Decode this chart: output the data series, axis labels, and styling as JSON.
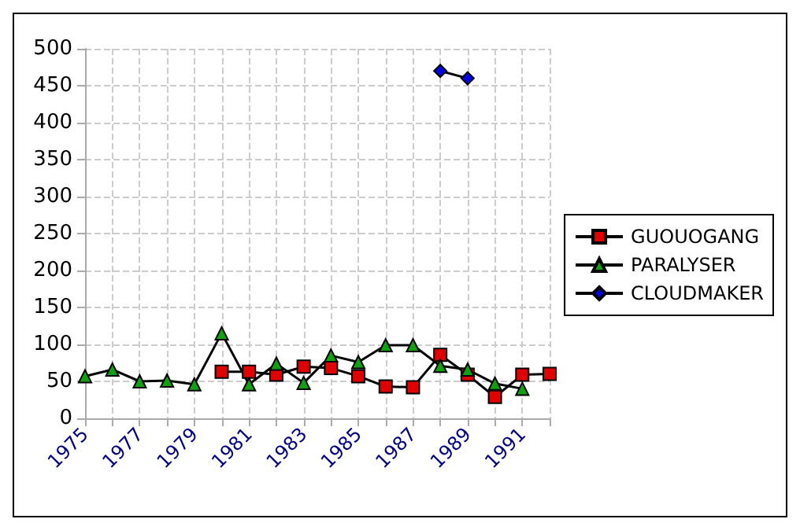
{
  "chart_data": {
    "type": "line",
    "categories": [
      "1975",
      null,
      "1977",
      null,
      "1979",
      null,
      "1981",
      null,
      "1983",
      null,
      "1985",
      null,
      "1987",
      null,
      "1989",
      null,
      "1991",
      null
    ],
    "series": [
      {
        "name": "GUOUOGANG",
        "color": "#e00000",
        "marker": "square",
        "values": [
          null,
          null,
          null,
          null,
          null,
          63,
          63,
          59,
          70,
          68,
          57,
          43,
          42,
          86,
          59,
          29,
          59,
          60
        ]
      },
      {
        "name": "PARALYSER",
        "color": "#10a010",
        "marker": "triangle",
        "values": [
          57,
          66,
          50,
          51,
          46,
          115,
          46,
          74,
          48,
          85,
          76,
          99,
          99,
          71,
          66,
          47,
          40,
          null
        ]
      },
      {
        "name": "CLOUDMAKER",
        "color": "#0000e0",
        "marker": "diamond",
        "values": [
          null,
          null,
          null,
          null,
          null,
          null,
          null,
          null,
          null,
          null,
          null,
          null,
          null,
          470,
          460,
          null,
          null,
          null
        ]
      }
    ],
    "ylim": [
      0,
      500
    ],
    "yticks": [
      0,
      50,
      100,
      150,
      200,
      250,
      300,
      350,
      400,
      450,
      500
    ],
    "grid": true,
    "legend": "right"
  }
}
